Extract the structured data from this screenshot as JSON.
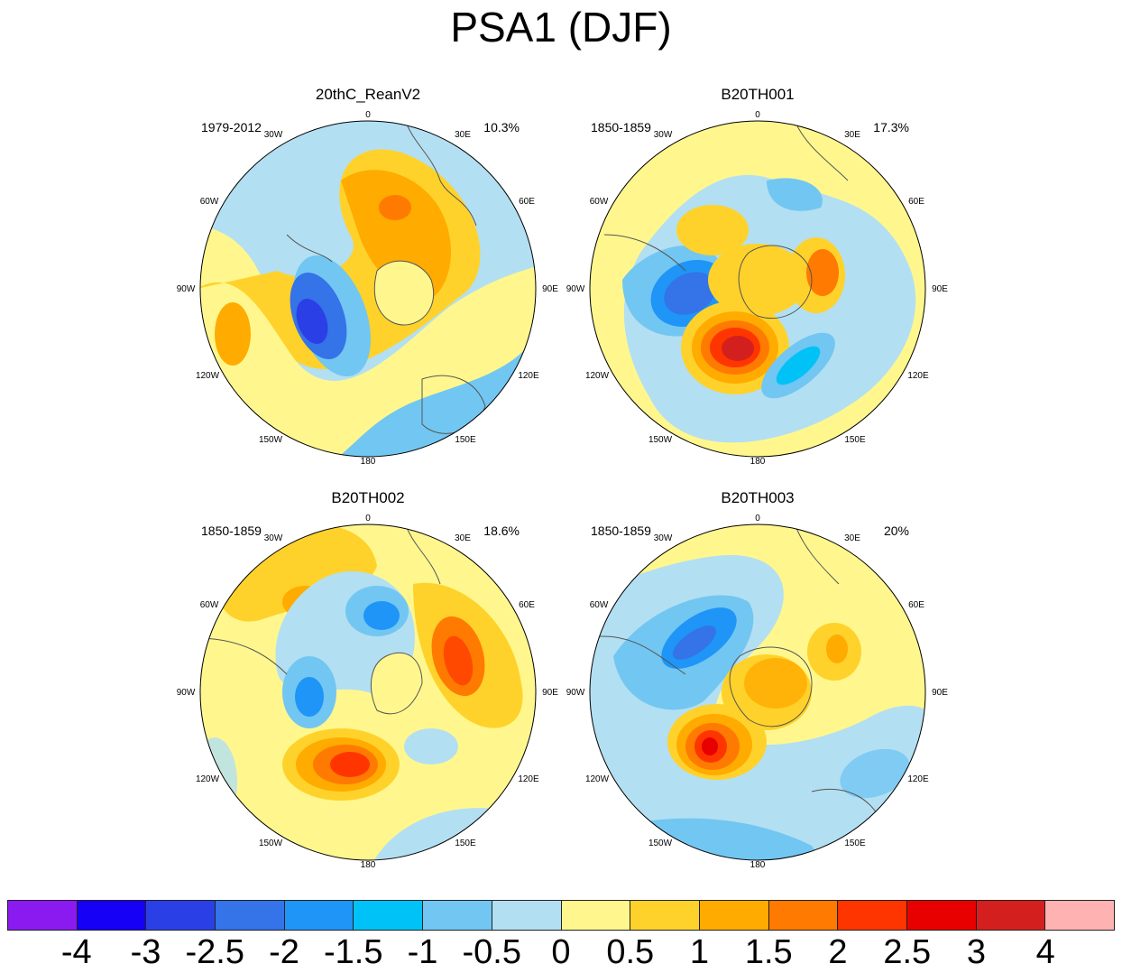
{
  "title": "PSA1 (DJF)",
  "panels": [
    {
      "name": "20thC_ReanV2",
      "years": "1979-2012",
      "variance": "10.3%"
    },
    {
      "name": "B20TH001",
      "years": "1850-1859",
      "variance": "17.3%"
    },
    {
      "name": "B20TH002",
      "years": "1850-1859",
      "variance": "18.6%"
    },
    {
      "name": "B20TH003",
      "years": "1850-1859",
      "variance": "20%"
    }
  ],
  "longitude_labels": [
    "0",
    "30E",
    "60E",
    "90E",
    "120E",
    "150E",
    "180",
    "150W",
    "120W",
    "90W",
    "60W",
    "30W"
  ],
  "colorbar": {
    "colors": [
      "#8a1af0",
      "#1600f5",
      "#2a40e6",
      "#3473e8",
      "#1e95f7",
      "#00c2f7",
      "#72c6f2",
      "#b3dff2",
      "#fff78e",
      "#ffd22b",
      "#ffab00",
      "#ff7a00",
      "#ff3500",
      "#e80000",
      "#d41f1f",
      "#ffb2b2"
    ],
    "labels": [
      "-4",
      "-3",
      "-2.5",
      "-2",
      "-1.5",
      "-1",
      "-0.5",
      "0",
      "0.5",
      "1",
      "1.5",
      "2",
      "2.5",
      "3",
      "4"
    ]
  }
}
